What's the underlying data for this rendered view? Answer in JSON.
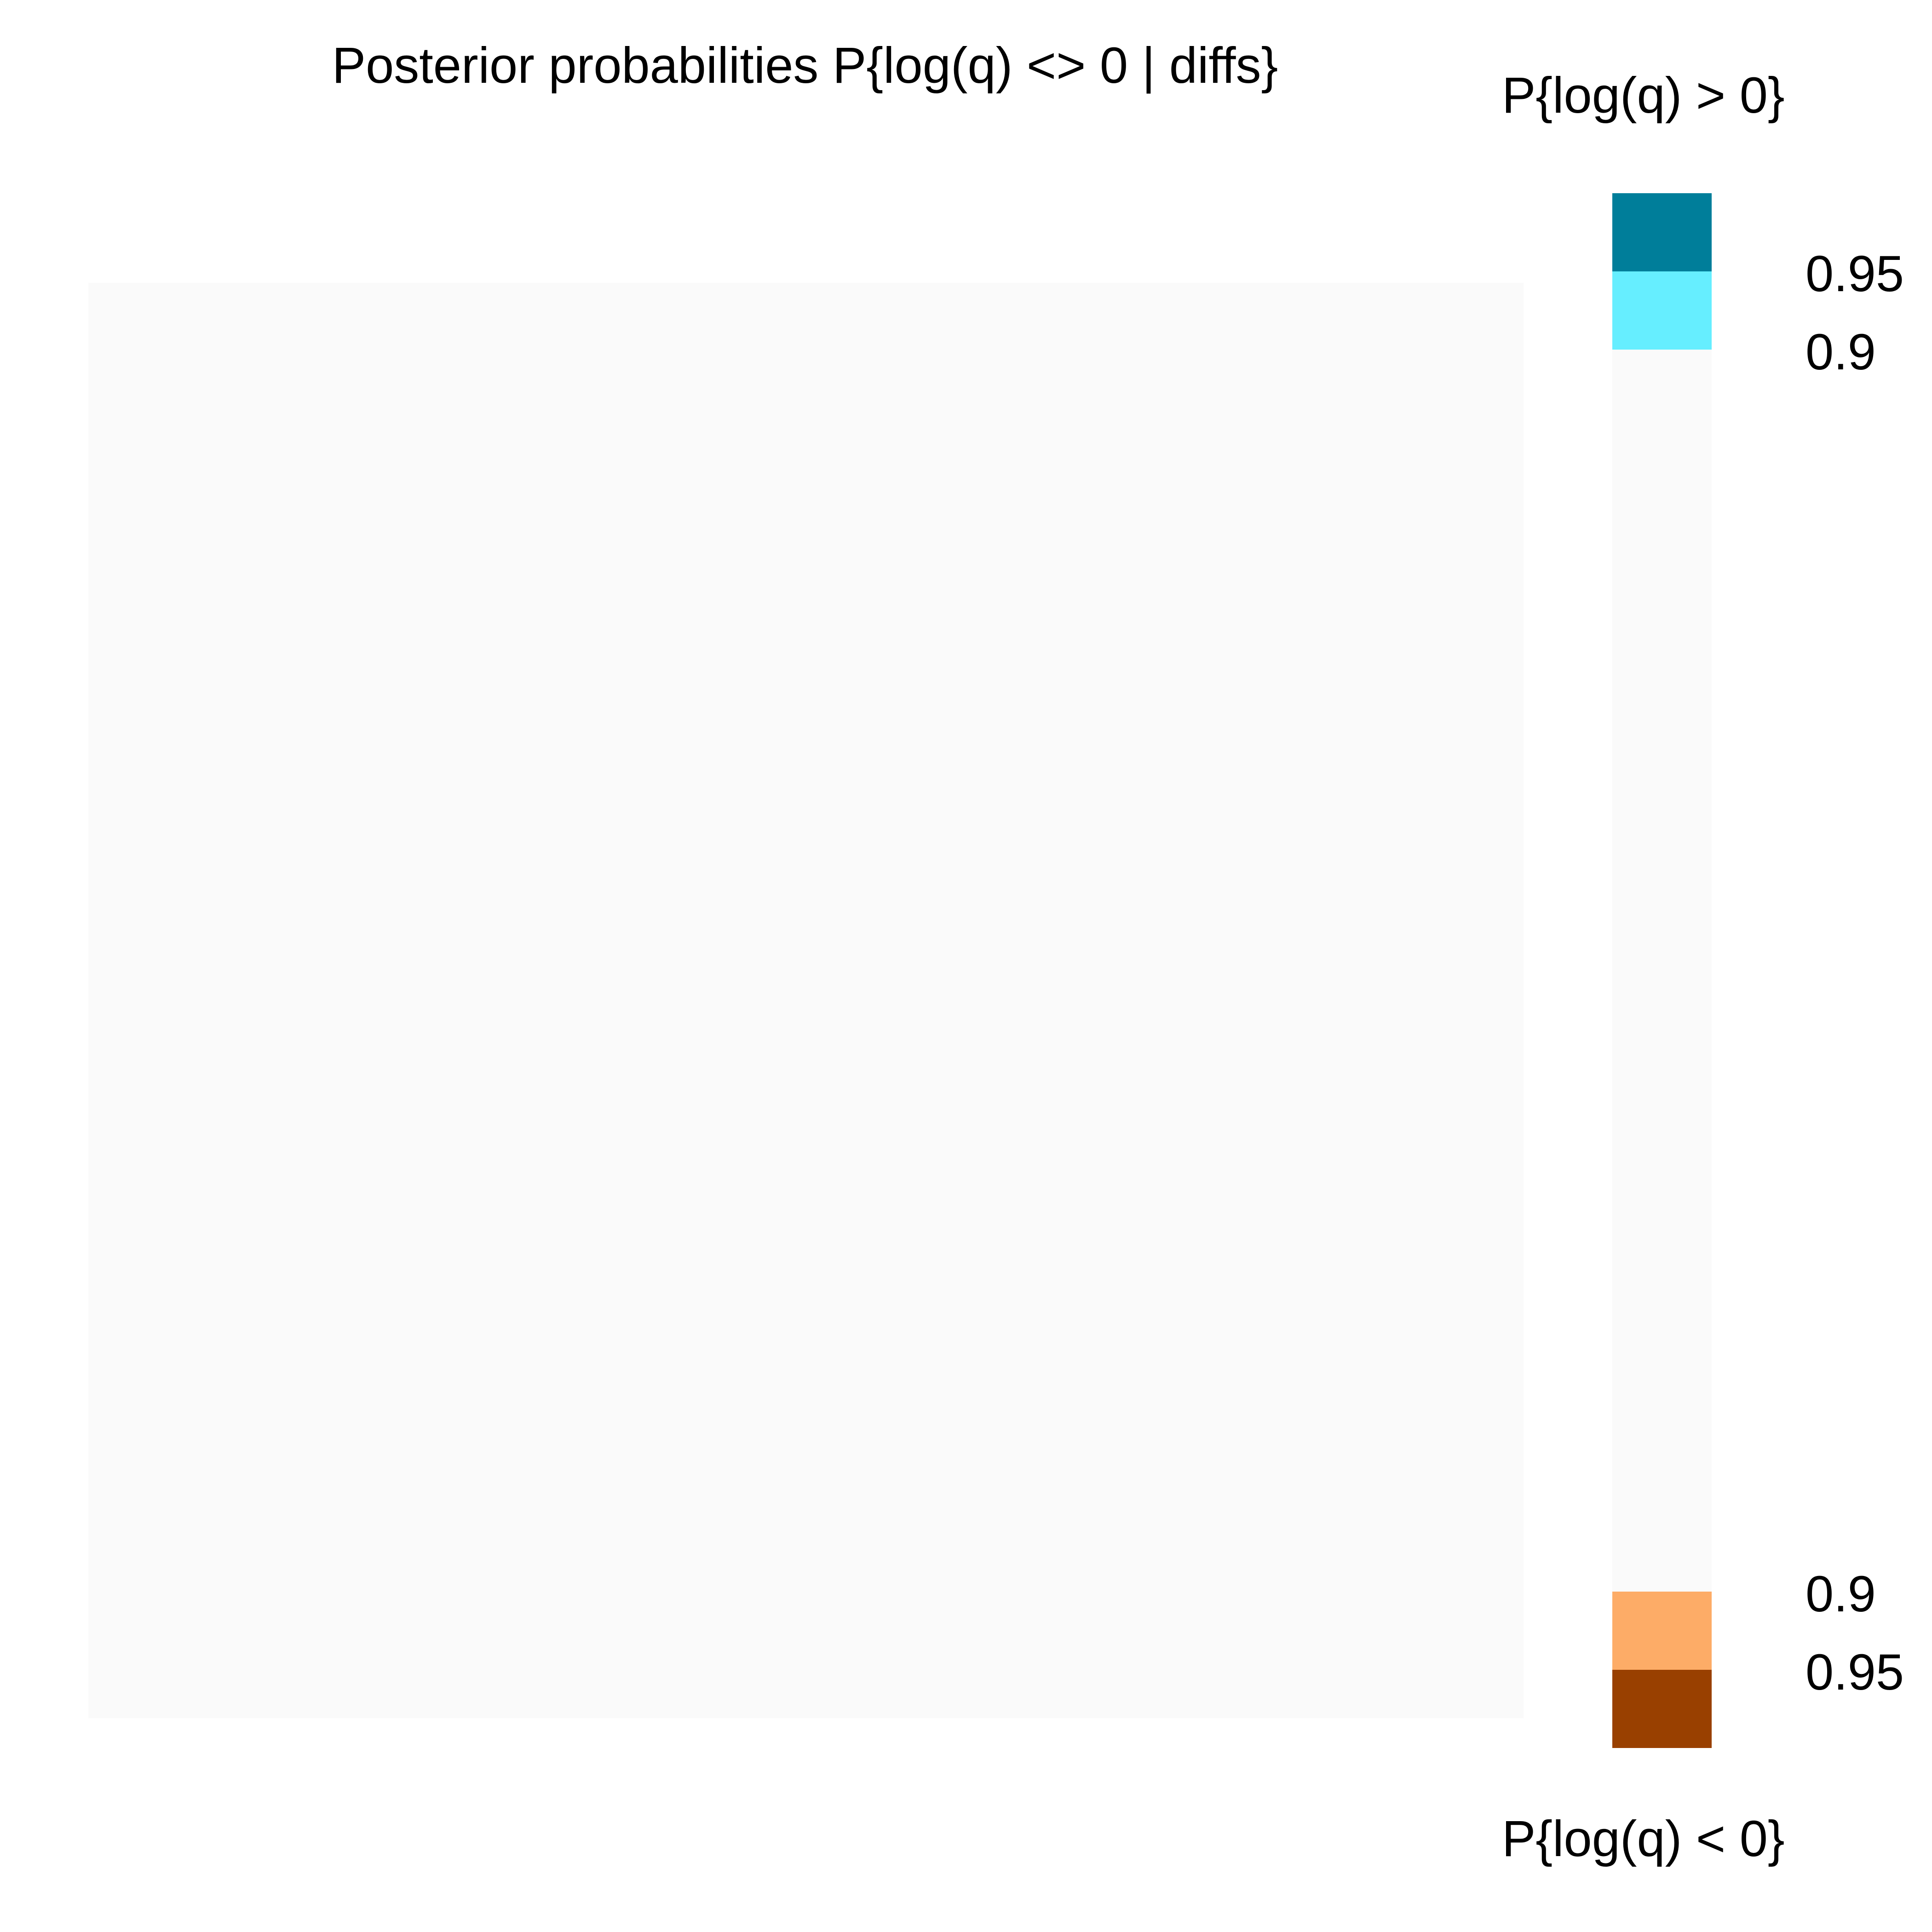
{
  "chart_data": {
    "type": "heatmap",
    "title": "Posterior probabilities P{log(q) <> 0 | diffs}",
    "xlabel": "",
    "ylabel": "",
    "grid": false,
    "cells": [
      {
        "row": 0,
        "col": 0,
        "category": "below 0.9",
        "color": "#FAFAFA"
      }
    ],
    "legend": {
      "placement": "right",
      "upper_title": "P{log(q) > 0}",
      "lower_title": "P{log(q) < 0}",
      "upper": {
        "categories": [
          {
            "label": "0.95",
            "threshold": 0.95,
            "color": "#007E9A"
          },
          {
            "label": "0.9",
            "threshold": 0.9,
            "color": "#66EEFF"
          }
        ]
      },
      "neutral_color": "#FAFAFA",
      "lower": {
        "categories": [
          {
            "label": "0.9",
            "threshold": 0.9,
            "color": "#FDAC67"
          },
          {
            "label": "0.95",
            "threshold": 0.95,
            "color": "#994000"
          }
        ]
      }
    }
  }
}
